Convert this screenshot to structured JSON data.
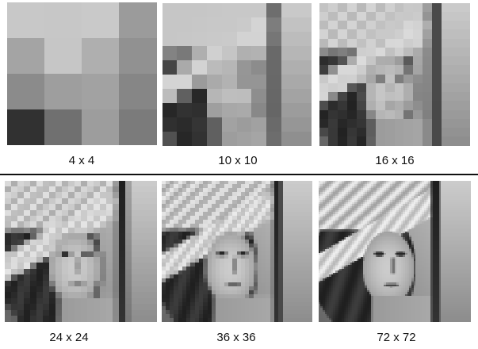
{
  "figure": {
    "top_row": [
      {
        "caption": "4 x 4",
        "grid": 4
      },
      {
        "caption": "10 x 10",
        "grid": 10
      },
      {
        "caption": "16 x 16",
        "grid": 16
      }
    ],
    "bottom_row": [
      {
        "caption": "24 x 24",
        "grid": 24
      },
      {
        "caption": "36 x 36",
        "grid": 36
      },
      {
        "caption": "72 x 72",
        "grid": 72
      }
    ]
  }
}
